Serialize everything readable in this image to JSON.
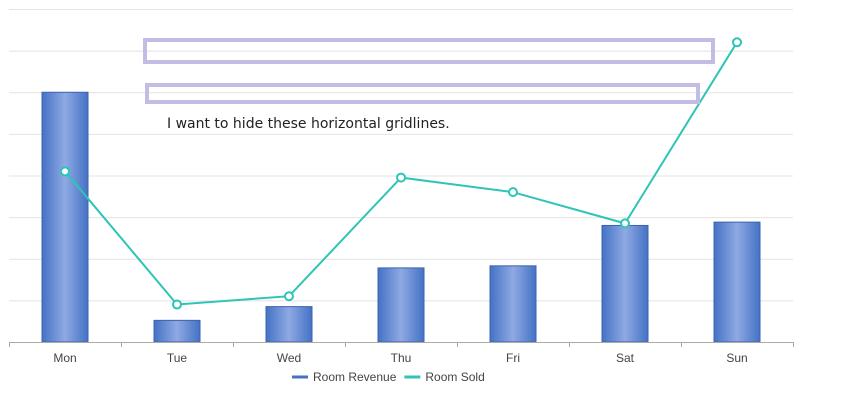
{
  "chart_data": {
    "type": "bar",
    "categories": [
      "Mon",
      "Tue",
      "Wed",
      "Thu",
      "Fri",
      "Sat",
      "Sun"
    ],
    "series": [
      {
        "name": "Room Revenue",
        "type": "bar",
        "color": "#4472c4",
        "values": [
          6.0,
          0.52,
          0.85,
          1.78,
          1.83,
          2.8,
          2.88
        ]
      },
      {
        "name": "Room Sold",
        "type": "line",
        "color": "#2ec4b6",
        "values": [
          4.1,
          0.9,
          1.1,
          3.95,
          3.6,
          2.85,
          7.2
        ]
      }
    ],
    "ylim": [
      0,
      8
    ],
    "y_tick_labels_visible": false,
    "grid": true,
    "legend_position": "bottom-center"
  },
  "annotation": {
    "text": "I want to hide these horizontal gridlines.",
    "highlight_color": "#c3bde6"
  }
}
